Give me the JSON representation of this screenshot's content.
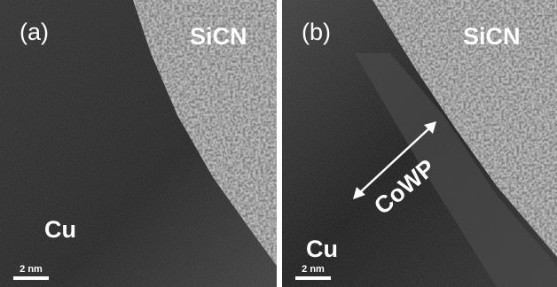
{
  "panels": [
    {
      "label": "(a)",
      "material_top": "SiCN",
      "material_bottom": "Cu",
      "scale_bar": "2 nm"
    },
    {
      "label": "(b)",
      "material_top": "SiCN",
      "material_bottom": "Cu",
      "interlayer": "CoWP",
      "scale_bar": "2 nm"
    }
  ]
}
